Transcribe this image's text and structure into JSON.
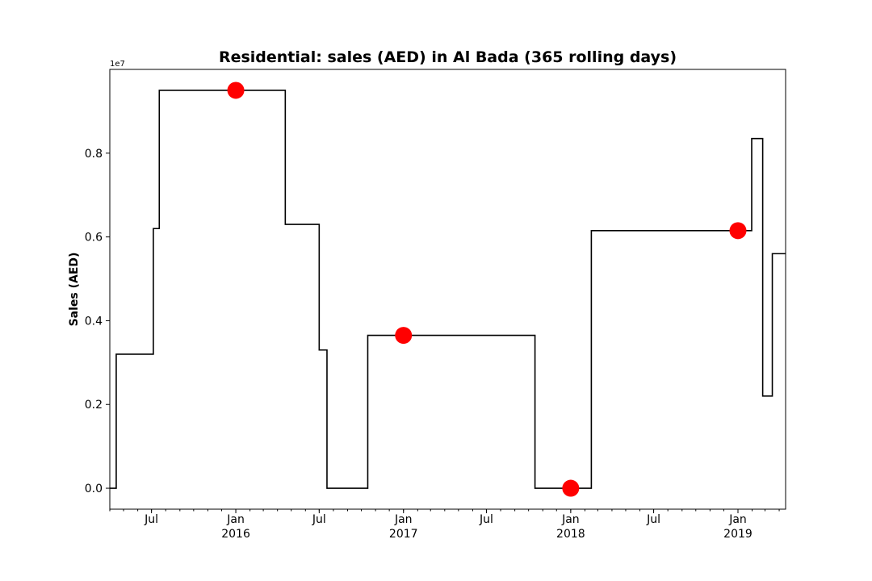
{
  "chart_data": {
    "type": "line",
    "drawstyle": "steps-post",
    "title": "Residential: sales (AED) in Al Bada (365 rolling days)",
    "xlabel": "",
    "ylabel": "Sales (AED)",
    "offset_text": "1e7",
    "xlim": [
      "2015-04-01",
      "2019-04-15"
    ],
    "ylim": [
      -0.05,
      1.0
    ],
    "y_scale_note": "",
    "yticks": [
      0.0,
      0.2,
      0.4,
      0.6,
      0.8
    ],
    "ytick_labels": [
      "0.0",
      "0.2",
      "0.4",
      "0.6",
      "0.8"
    ],
    "xticks_major": [
      {
        "date": "2015-07-01",
        "label": "Jul",
        "sublabel": ""
      },
      {
        "date": "2016-01-01",
        "label": "Jan",
        "sublabel": "2016"
      },
      {
        "date": "2016-07-01",
        "label": "Jul",
        "sublabel": ""
      },
      {
        "date": "2017-01-01",
        "label": "Jan",
        "sublabel": "2017"
      },
      {
        "date": "2017-07-01",
        "label": "Jul",
        "sublabel": ""
      },
      {
        "date": "2018-01-01",
        "label": "Jan",
        "sublabel": "2018"
      },
      {
        "date": "2018-07-01",
        "label": "Jul",
        "sublabel": ""
      },
      {
        "date": "2019-01-01",
        "label": "Jan",
        "sublabel": "2019"
      }
    ],
    "grid": false,
    "legend": "none",
    "series": [
      {
        "color": "#000000",
        "points": [
          {
            "x": "2015-04-01",
            "y": 0.0
          },
          {
            "x": "2015-04-15",
            "y": 0.32
          },
          {
            "x": "2015-07-05",
            "y": 0.62
          },
          {
            "x": "2015-07-18",
            "y": 0.95
          },
          {
            "x": "2016-04-18",
            "y": 0.63
          },
          {
            "x": "2016-07-01",
            "y": 0.33
          },
          {
            "x": "2016-07-18",
            "y": 0.0
          },
          {
            "x": "2016-10-15",
            "y": 0.365
          },
          {
            "x": "2017-10-15",
            "y": 0.0
          },
          {
            "x": "2018-02-15",
            "y": 0.615
          },
          {
            "x": "2019-01-31",
            "y": 0.835
          },
          {
            "x": "2019-02-24",
            "y": 0.22
          },
          {
            "x": "2019-03-17",
            "y": 0.56
          },
          {
            "x": "2019-04-15",
            "y": 0.56
          }
        ]
      }
    ],
    "markers": {
      "color": "#ff0000",
      "points": [
        {
          "x": "2016-01-01",
          "y": 0.95
        },
        {
          "x": "2017-01-01",
          "y": 0.365
        },
        {
          "x": "2018-01-01",
          "y": 0.0
        },
        {
          "x": "2019-01-01",
          "y": 0.615
        }
      ]
    }
  }
}
